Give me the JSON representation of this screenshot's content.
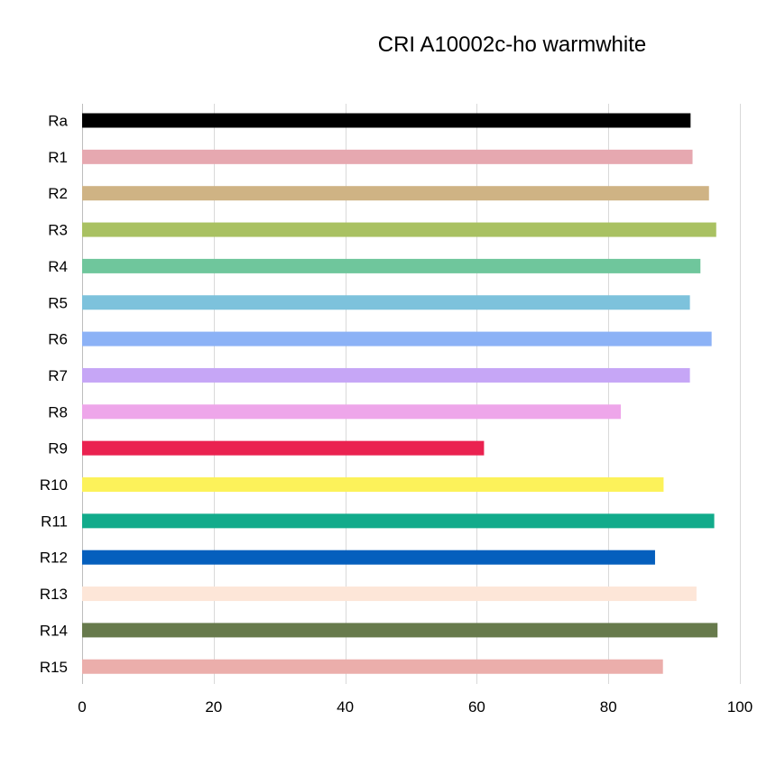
{
  "chart_data": {
    "type": "bar",
    "orientation": "horizontal",
    "title": "CRI A10002c-ho warmwhite",
    "xlabel": "",
    "ylabel": "",
    "xlim": [
      0,
      100
    ],
    "xticks": [
      0,
      20,
      40,
      60,
      80,
      100
    ],
    "grid": "vertical",
    "legend": "none",
    "categories": [
      "Ra",
      "R1",
      "R2",
      "R3",
      "R4",
      "R5",
      "R6",
      "R7",
      "R8",
      "R9",
      "R10",
      "R11",
      "R12",
      "R13",
      "R14",
      "R15"
    ],
    "values": [
      92.5,
      92.8,
      95.3,
      96.4,
      94.0,
      92.4,
      95.7,
      92.4,
      81.9,
      61.1,
      88.4,
      96.1,
      87.1,
      93.4,
      96.6,
      88.3
    ],
    "colors": [
      "#000000",
      "#e6a8b0",
      "#cfb384",
      "#a9c162",
      "#6fc69c",
      "#7dc2dc",
      "#8cb2f6",
      "#c6a6f6",
      "#eea6ea",
      "#ea2250",
      "#fcf25a",
      "#12ab8b",
      "#055fbd",
      "#fde6d8",
      "#677a4c",
      "#ebaeab"
    ]
  }
}
